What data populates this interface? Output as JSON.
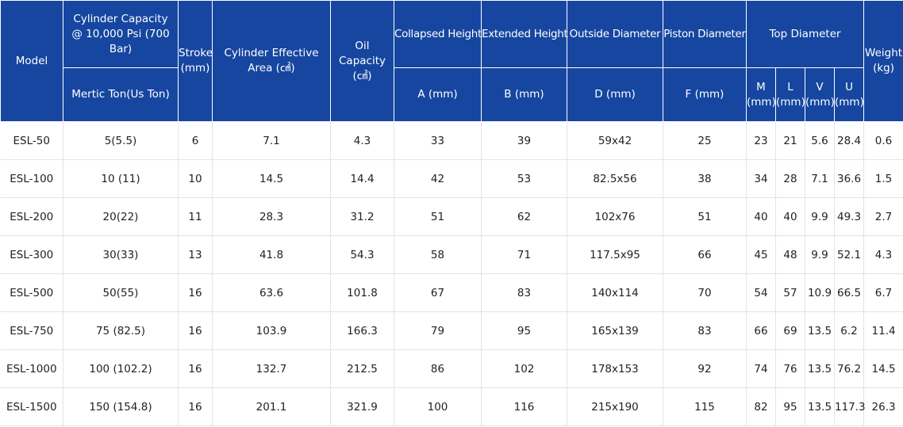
{
  "header": {
    "model": "Model",
    "capacity_group": "Cylinder Capacity @ 10,000 Psi (700 Bar)",
    "capacity_sub": "Mertic Ton(Us Ton)",
    "stroke": "Stroke (mm)",
    "effective_area": "Cylinder Effective Area (㎠)",
    "oil_capacity": "Oil Capacity (㎤)",
    "collapsed": "Collapsed Height",
    "collapsed_sub": "A (mm)",
    "extended": "Extended Height",
    "extended_sub": "B (mm)",
    "outside_diameter": "Outside Diameter",
    "outside_sub": "D (mm)",
    "piston_diameter": "Piston Diameter",
    "piston_sub": "F (mm)",
    "top_diameter": "Top Diameter",
    "top_m": "M (mm)",
    "top_l": "L (mm)",
    "top_v": "V (mm)",
    "top_u": "U (mm)",
    "weight": "Weight (kg)"
  },
  "rows": [
    {
      "model": "ESL-50",
      "capacity": "5(5.5)",
      "stroke": "6",
      "area": "7.1",
      "oil": "4.3",
      "a": "33",
      "b": "39",
      "d": "59x42",
      "f": "25",
      "m": "23",
      "l": "21",
      "v": "5.6",
      "u": "28.4",
      "weight": "0.6"
    },
    {
      "model": "ESL-100",
      "capacity": "10 (11)",
      "stroke": "10",
      "area": "14.5",
      "oil": "14.4",
      "a": "42",
      "b": "53",
      "d": "82.5x56",
      "f": "38",
      "m": "34",
      "l": "28",
      "v": "7.1",
      "u": "36.6",
      "weight": "1.5"
    },
    {
      "model": "ESL-200",
      "capacity": "20(22)",
      "stroke": "11",
      "area": "28.3",
      "oil": "31.2",
      "a": "51",
      "b": "62",
      "d": "102x76",
      "f": "51",
      "m": "40",
      "l": "40",
      "v": "9.9",
      "u": "49.3",
      "weight": "2.7"
    },
    {
      "model": "ESL-300",
      "capacity": "30(33)",
      "stroke": "13",
      "area": "41.8",
      "oil": "54.3",
      "a": "58",
      "b": "71",
      "d": "117.5x95",
      "f": "66",
      "m": "45",
      "l": "48",
      "v": "9.9",
      "u": "52.1",
      "weight": "4.3"
    },
    {
      "model": "ESL-500",
      "capacity": "50(55)",
      "stroke": "16",
      "area": "63.6",
      "oil": "101.8",
      "a": "67",
      "b": "83",
      "d": "140x114",
      "f": "70",
      "m": "54",
      "l": "57",
      "v": "10.9",
      "u": "66.5",
      "weight": "6.7"
    },
    {
      "model": "ESL-750",
      "capacity": "75 (82.5)",
      "stroke": "16",
      "area": "103.9",
      "oil": "166.3",
      "a": "79",
      "b": "95",
      "d": "165x139",
      "f": "83",
      "m": "66",
      "l": "69",
      "v": "13.5",
      "u": "6.2",
      "weight": "11.4"
    },
    {
      "model": "ESL-1000",
      "capacity": "100 (102.2)",
      "stroke": "16",
      "area": "132.7",
      "oil": "212.5",
      "a": "86",
      "b": "102",
      "d": "178x153",
      "f": "92",
      "m": "74",
      "l": "76",
      "v": "13.5",
      "u": "76.2",
      "weight": "14.5"
    },
    {
      "model": "ESL-1500",
      "capacity": "150 (154.8)",
      "stroke": "16",
      "area": "201.1",
      "oil": "321.9",
      "a": "100",
      "b": "116",
      "d": "215x190",
      "f": "115",
      "m": "82",
      "l": "95",
      "v": "13.5",
      "u": "117.3",
      "weight": "26.3"
    }
  ],
  "colors": {
    "header_bg": "#1646a0",
    "header_text": "#ffffff",
    "grid": "#e3e3e3"
  }
}
